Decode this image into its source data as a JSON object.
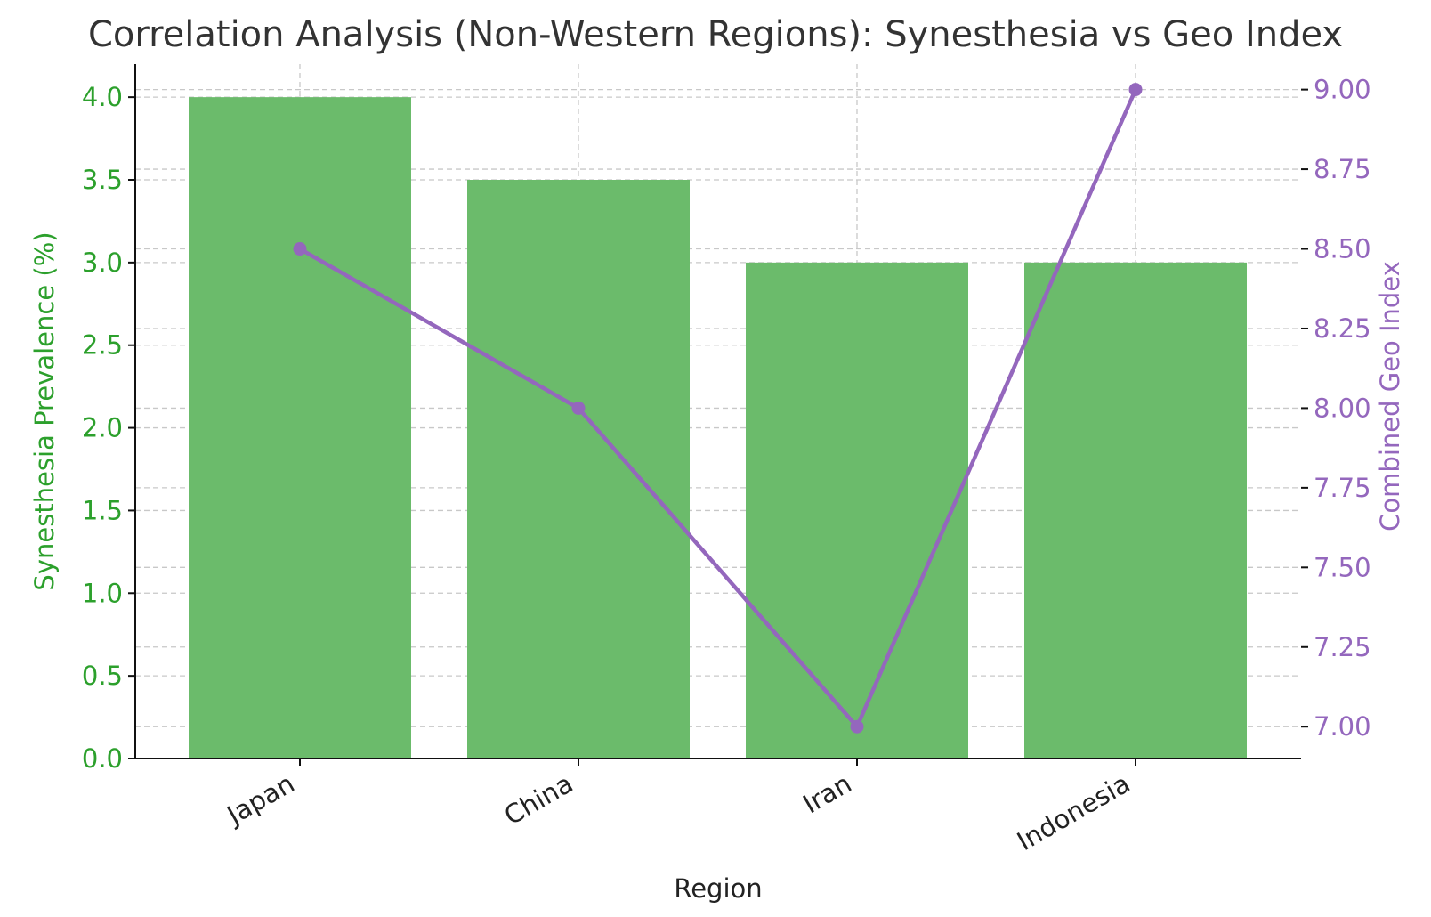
{
  "chart_data": {
    "type": "bar+line",
    "title": "Correlation Analysis (Non-Western Regions): Synesthesia vs Geo Index",
    "xlabel": "Region",
    "categories": [
      "Japan",
      "China",
      "Iran",
      "Indonesia"
    ],
    "left_axis": {
      "label": "Synesthesia Prevalence (%)",
      "ylim": [
        0,
        4.2
      ],
      "ticks": [
        "0.0",
        "0.5",
        "1.0",
        "1.5",
        "2.0",
        "2.5",
        "3.0",
        "3.5",
        "4.0"
      ],
      "color": "#2ca02c"
    },
    "right_axis": {
      "label": "Combined Geo Index",
      "ylim": [
        6.9,
        9.08
      ],
      "ticks": [
        "7.00",
        "7.25",
        "7.50",
        "7.75",
        "8.00",
        "8.25",
        "8.50",
        "8.75",
        "9.00"
      ],
      "color": "#9467bd"
    },
    "series": [
      {
        "kind": "bar",
        "axis": "left",
        "values": [
          4.0,
          3.5,
          3.0,
          3.0
        ],
        "color": "#6bbb6b"
      },
      {
        "kind": "line",
        "axis": "right",
        "values": [
          8.5,
          8.0,
          7.0,
          9.0
        ],
        "color": "#9467bd",
        "marker": "circle"
      }
    ],
    "grid": true
  }
}
